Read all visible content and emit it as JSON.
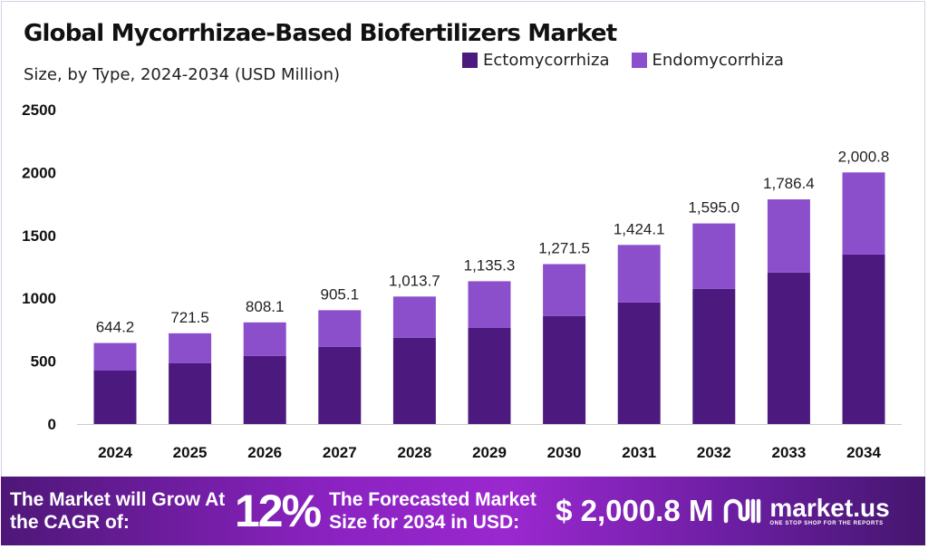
{
  "chart_data": {
    "type": "bar",
    "stacked": true,
    "title": "Global Mycorrhizae-Based Biofertilizers Market",
    "subtitle": "Size, by Type, 2024-2034 (USD Million)",
    "categories": [
      "2024",
      "2025",
      "2026",
      "2027",
      "2028",
      "2029",
      "2030",
      "2031",
      "2032",
      "2033",
      "2034"
    ],
    "series": [
      {
        "name": "Ectomycorrhiza",
        "color": "#4c1a7e",
        "values": [
          425,
          483,
          541,
          613,
          685,
          764,
          858,
          966,
          1074,
          1204,
          1348
        ]
      },
      {
        "name": "Endomycorrhiza",
        "color": "#8b4fcc",
        "values": [
          219.2,
          238.5,
          267.1,
          292.1,
          328.7,
          371.3,
          413.5,
          458.1,
          521.0,
          582.4,
          652.8
        ]
      }
    ],
    "totals": [
      "644.2",
      "721.5",
      "808.1",
      "905.1",
      "1,013.7",
      "1,135.3",
      "1,271.5",
      "1,424.1",
      "1,595.0",
      "1,786.4",
      "2,000.8"
    ],
    "yticks": [
      "0",
      "500",
      "1000",
      "1500",
      "2000",
      "2500"
    ],
    "ylim": [
      0,
      2500
    ],
    "grid": false,
    "legend_position": "top-right"
  },
  "footer": {
    "cagr_label": "The Market will Grow At the CAGR of:",
    "cagr_value": "12%",
    "forecast_label": "The Forecasted Market Size for 2034 in USD:",
    "forecast_value": "$ 2,000.8 M",
    "logo_name": "market.us",
    "logo_tagline": "ONE STOP SHOP FOR THE REPORTS"
  }
}
